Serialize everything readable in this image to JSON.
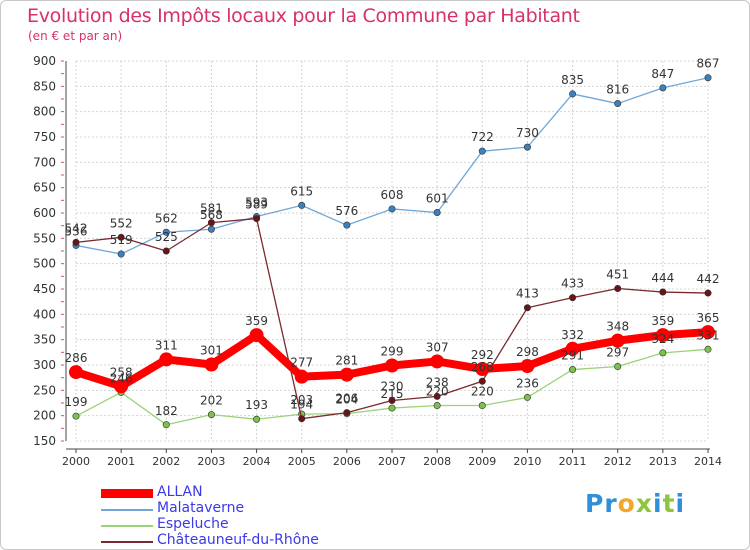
{
  "title": "Evolution des Impôts locaux pour la Commune par Habitant",
  "subtitle": "(en € et par an)",
  "logo": {
    "letters": [
      {
        "ch": "P",
        "color": "#2f8fd8"
      },
      {
        "ch": "r",
        "color": "#2f8fd8"
      },
      {
        "ch": "o",
        "color": "#f2a72b"
      },
      {
        "ch": "x",
        "color": "#8cc63f"
      },
      {
        "ch": "i",
        "color": "#2f8fd8"
      },
      {
        "ch": "t",
        "color": "#8cc63f"
      },
      {
        "ch": "i",
        "color": "#2f8fd8"
      }
    ]
  },
  "chart_data": {
    "type": "line",
    "x": [
      "2000",
      "2001",
      "2002",
      "2003",
      "2004",
      "2005",
      "2006",
      "2007",
      "2008",
      "2009",
      "2010",
      "2011",
      "2012",
      "2013",
      "2014"
    ],
    "yticks": [
      150,
      200,
      250,
      300,
      350,
      400,
      450,
      500,
      550,
      600,
      650,
      700,
      750,
      800,
      850,
      900
    ],
    "ylim": [
      150,
      900
    ],
    "grid": true,
    "legend_position": "bottom-left",
    "series": [
      {
        "name": "Malataverne",
        "color": "#6fa8d8",
        "marker": "#3b80c0",
        "values": [
          536,
          519,
          562,
          568,
          593,
          615,
          576,
          608,
          601,
          722,
          730,
          835,
          816,
          847,
          867
        ],
        "labels": [
          "536",
          "519",
          "562",
          "568",
          "593",
          "615",
          "576",
          "608",
          "601",
          "722",
          "730",
          "835",
          "816",
          "847",
          "867"
        ]
      },
      {
        "name": "Espeluche",
        "color": "#9bd27a",
        "marker": "#7cc24a",
        "values": [
          199,
          246,
          182,
          202,
          193,
          203,
          204,
          215,
          220,
          220,
          236,
          291,
          297,
          324,
          331
        ],
        "labels": [
          "199",
          "246",
          "182",
          "202",
          "193",
          "203",
          "204",
          "215",
          "220",
          "220",
          "236",
          "291",
          "297",
          "324",
          "331"
        ]
      },
      {
        "name": "Châteauneuf-du-Rhône",
        "color": "#7a2a30",
        "marker": "#6a1418",
        "values": [
          542,
          552,
          525,
          581,
          589,
          194,
          206,
          230,
          238,
          268,
          413,
          433,
          451,
          444,
          442
        ],
        "labels": [
          "542",
          "552",
          "525",
          "581",
          "589",
          "194",
          "206",
          "230",
          "238",
          "268",
          "413",
          "433",
          "451",
          "444",
          "442"
        ]
      },
      {
        "name": "ALLAN",
        "color": "#ff0000",
        "marker": "#ff0000",
        "values": [
          286,
          258,
          311,
          301,
          359,
          277,
          281,
          299,
          307,
          292,
          298,
          332,
          348,
          359,
          365
        ],
        "labels": [
          "286",
          "258",
          "311",
          "301",
          "359",
          "277",
          "281",
          "299",
          "307",
          "292",
          "298",
          "332",
          "348",
          "359",
          "365"
        ]
      }
    ],
    "legend": [
      {
        "name": "ALLAN",
        "color": "#ff0000",
        "thick": true
      },
      {
        "name": "Malataverne",
        "color": "#6fa8d8",
        "thick": false
      },
      {
        "name": "Espeluche",
        "color": "#9bd27a",
        "thick": false
      },
      {
        "name": "Châteauneuf-du-Rhône",
        "color": "#7a2a30",
        "thick": false
      }
    ]
  }
}
